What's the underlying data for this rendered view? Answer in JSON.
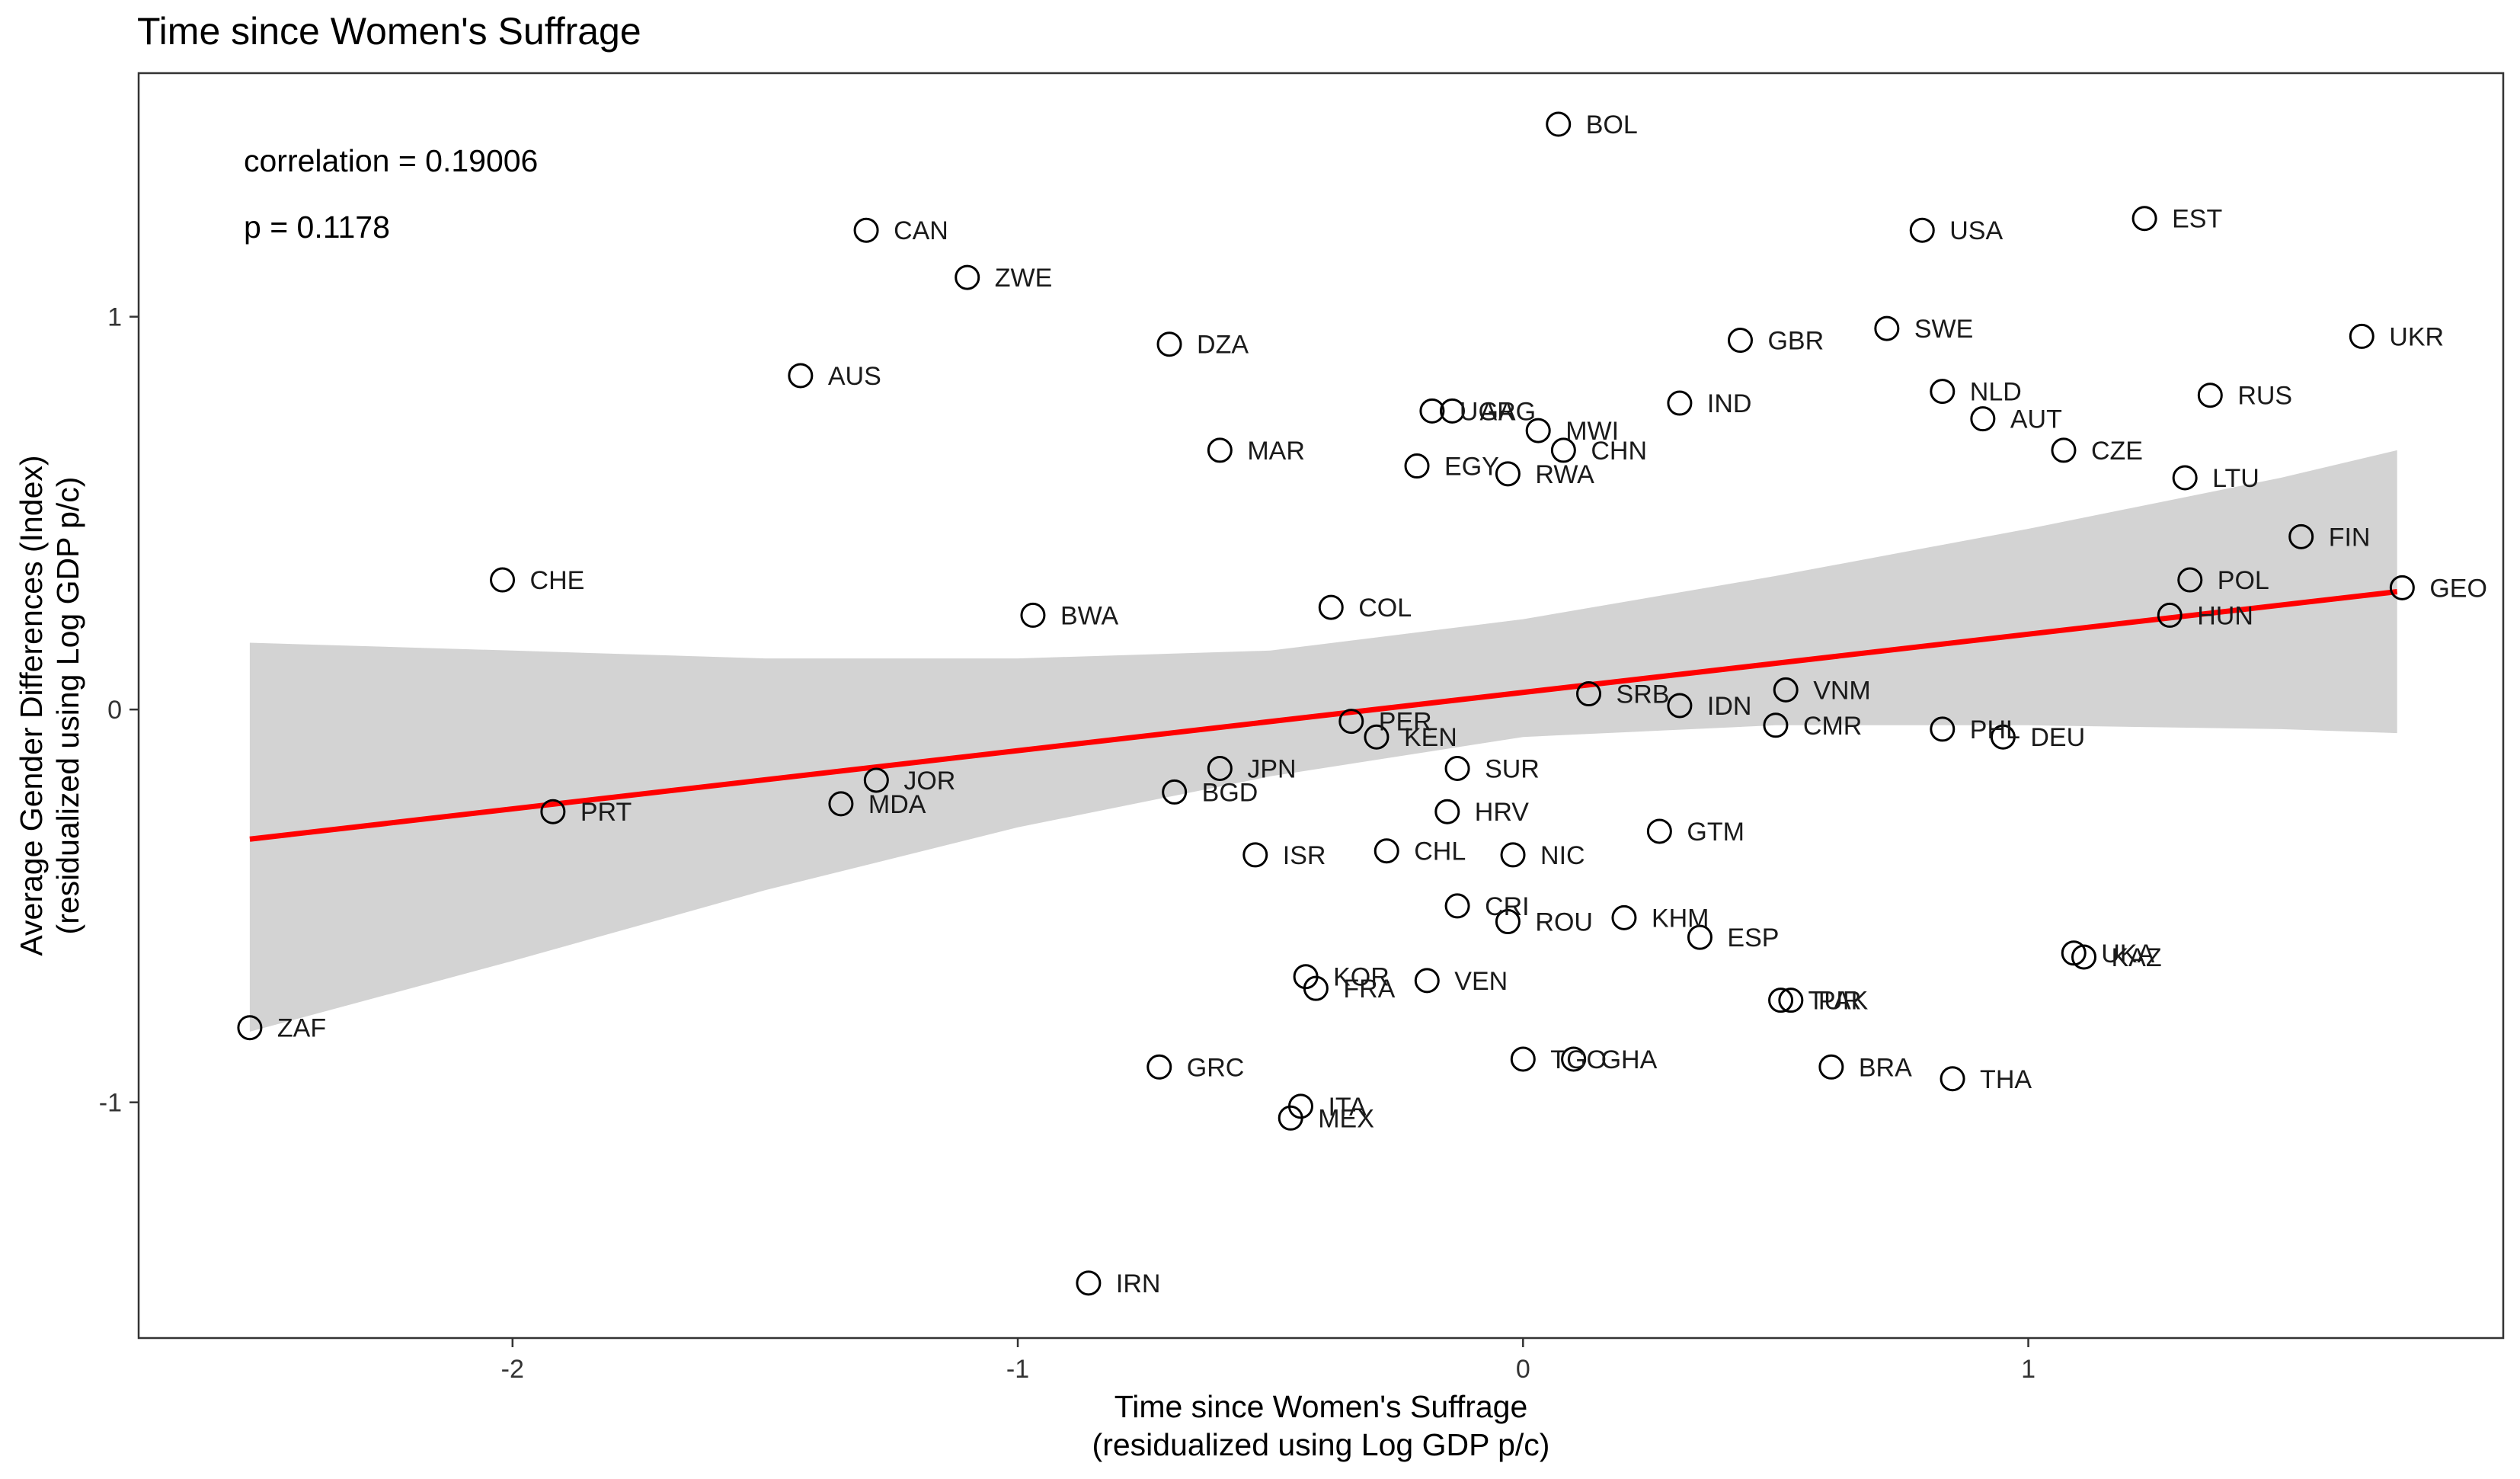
{
  "chart_data": {
    "type": "scatter",
    "title": "Time since Women's Suffrage",
    "xlabel": [
      "Time since Women's Suffrage",
      "(residualized using Log GDP p/c)"
    ],
    "ylabel": [
      "Average Gender Differences (Index)",
      "(residualized using Log GDP p/c)"
    ],
    "annotations": [
      "correlation = 0.19006",
      "p = 0.1178"
    ],
    "xlim": [
      -2.74,
      1.94
    ],
    "ylim": [
      -1.6,
      1.62
    ],
    "x_ticks": [
      -2,
      -1,
      0,
      1
    ],
    "x_tick_labels": [
      "-2",
      "-1",
      "0",
      "1"
    ],
    "y_ticks": [
      -1,
      0,
      1
    ],
    "y_tick_labels": [
      "-1",
      "0",
      "1"
    ],
    "grid": false,
    "colors": {
      "fit_line": "#ff0000",
      "confidence_band": "#d3d3d3",
      "points": "#000000",
      "frame": "#333333"
    },
    "fit": {
      "x_start": -2.52,
      "y_start": -0.33,
      "x_end": 1.73,
      "y_end": 0.3
    },
    "confidence_band": {
      "x": [
        -2.52,
        -2.0,
        -1.5,
        -1.0,
        -0.5,
        0.0,
        0.5,
        1.0,
        1.5,
        1.73
      ],
      "lower": [
        -0.82,
        -0.64,
        -0.46,
        -0.3,
        -0.17,
        -0.07,
        -0.04,
        -0.04,
        -0.05,
        -0.06
      ],
      "upper": [
        0.17,
        0.15,
        0.13,
        0.13,
        0.15,
        0.23,
        0.34,
        0.46,
        0.59,
        0.66
      ]
    },
    "points": [
      {
        "label": "BOL",
        "x": 0.07,
        "y": 1.49
      },
      {
        "label": "CAN",
        "x": -1.3,
        "y": 1.22
      },
      {
        "label": "ZWE",
        "x": -1.1,
        "y": 1.1
      },
      {
        "label": "AUS",
        "x": -1.43,
        "y": 0.85
      },
      {
        "label": "DZA",
        "x": -0.7,
        "y": 0.93
      },
      {
        "label": "MAR",
        "x": -0.6,
        "y": 0.66
      },
      {
        "label": "EGY",
        "x": -0.21,
        "y": 0.62
      },
      {
        "label": "RWA",
        "x": -0.03,
        "y": 0.6
      },
      {
        "label": "UGA",
        "x": -0.18,
        "y": 0.76
      },
      {
        "label": "ARG",
        "x": -0.14,
        "y": 0.76
      },
      {
        "label": "MWI",
        "x": 0.03,
        "y": 0.71
      },
      {
        "label": "CHN",
        "x": 0.08,
        "y": 0.66
      },
      {
        "label": "IND",
        "x": 0.31,
        "y": 0.78
      },
      {
        "label": "GBR",
        "x": 0.43,
        "y": 0.94
      },
      {
        "label": "USA",
        "x": 0.79,
        "y": 1.22
      },
      {
        "label": "SWE",
        "x": 0.72,
        "y": 0.97
      },
      {
        "label": "NLD",
        "x": 0.83,
        "y": 0.81
      },
      {
        "label": "AUT",
        "x": 0.91,
        "y": 0.74
      },
      {
        "label": "CZE",
        "x": 1.07,
        "y": 0.66
      },
      {
        "label": "EST",
        "x": 1.23,
        "y": 1.25
      },
      {
        "label": "RUS",
        "x": 1.36,
        "y": 0.8
      },
      {
        "label": "UKR",
        "x": 1.66,
        "y": 0.95
      },
      {
        "label": "LTU",
        "x": 1.31,
        "y": 0.59
      },
      {
        "label": "FIN",
        "x": 1.54,
        "y": 0.44
      },
      {
        "label": "POL",
        "x": 1.32,
        "y": 0.33
      },
      {
        "label": "GEO",
        "x": 1.74,
        "y": 0.31
      },
      {
        "label": "HUN",
        "x": 1.28,
        "y": 0.24
      },
      {
        "label": "CHE",
        "x": -2.02,
        "y": 0.33
      },
      {
        "label": "BWA",
        "x": -0.97,
        "y": 0.24
      },
      {
        "label": "COL",
        "x": -0.38,
        "y": 0.26
      },
      {
        "label": "SRB",
        "x": 0.13,
        "y": 0.04
      },
      {
        "label": "IDN",
        "x": 0.31,
        "y": 0.01
      },
      {
        "label": "VNM",
        "x": 0.52,
        "y": 0.05
      },
      {
        "label": "CMR",
        "x": 0.5,
        "y": -0.04
      },
      {
        "label": "PHL",
        "x": 0.83,
        "y": -0.05
      },
      {
        "label": "DEU",
        "x": 0.95,
        "y": -0.07
      },
      {
        "label": "PER",
        "x": -0.34,
        "y": -0.03
      },
      {
        "label": "KEN",
        "x": -0.29,
        "y": -0.07
      },
      {
        "label": "SUR",
        "x": -0.13,
        "y": -0.15
      },
      {
        "label": "JPN",
        "x": -0.6,
        "y": -0.15
      },
      {
        "label": "BGD",
        "x": -0.69,
        "y": -0.21
      },
      {
        "label": "PRT",
        "x": -1.92,
        "y": -0.26
      },
      {
        "label": "JOR",
        "x": -1.28,
        "y": -0.18
      },
      {
        "label": "MDA",
        "x": -1.35,
        "y": -0.24
      },
      {
        "label": "HRV",
        "x": -0.15,
        "y": -0.26
      },
      {
        "label": "GTM",
        "x": 0.27,
        "y": -0.31
      },
      {
        "label": "ISR",
        "x": -0.53,
        "y": -0.37
      },
      {
        "label": "CHL",
        "x": -0.27,
        "y": -0.36
      },
      {
        "label": "NIC",
        "x": -0.02,
        "y": -0.37
      },
      {
        "label": "CRI",
        "x": -0.13,
        "y": -0.5
      },
      {
        "label": "ROU",
        "x": -0.03,
        "y": -0.54
      },
      {
        "label": "KHM",
        "x": 0.2,
        "y": -0.53
      },
      {
        "label": "ESP",
        "x": 0.35,
        "y": -0.58
      },
      {
        "label": "UKA",
        "x": 1.09,
        "y": -0.62
      },
      {
        "label": "KAZ",
        "x": 1.11,
        "y": -0.63
      },
      {
        "label": "KOR",
        "x": -0.43,
        "y": -0.68
      },
      {
        "label": "FRA",
        "x": -0.41,
        "y": -0.71
      },
      {
        "label": "VEN",
        "x": -0.19,
        "y": -0.69
      },
      {
        "label": "TUR",
        "x": 0.51,
        "y": -0.74
      },
      {
        "label": "PAK",
        "x": 0.53,
        "y": -0.74
      },
      {
        "label": "ZAF",
        "x": -2.52,
        "y": -0.81
      },
      {
        "label": "GRC",
        "x": -0.72,
        "y": -0.91
      },
      {
        "label": "TGO",
        "x": 0.0,
        "y": -0.89
      },
      {
        "label": "GHA",
        "x": 0.1,
        "y": -0.89
      },
      {
        "label": "BRA",
        "x": 0.61,
        "y": -0.91
      },
      {
        "label": "THA",
        "x": 0.85,
        "y": -0.94
      },
      {
        "label": "ITA",
        "x": -0.44,
        "y": -1.01
      },
      {
        "label": "MEX",
        "x": -0.46,
        "y": -1.04
      },
      {
        "label": "IRN",
        "x": -0.86,
        "y": -1.46
      }
    ]
  }
}
